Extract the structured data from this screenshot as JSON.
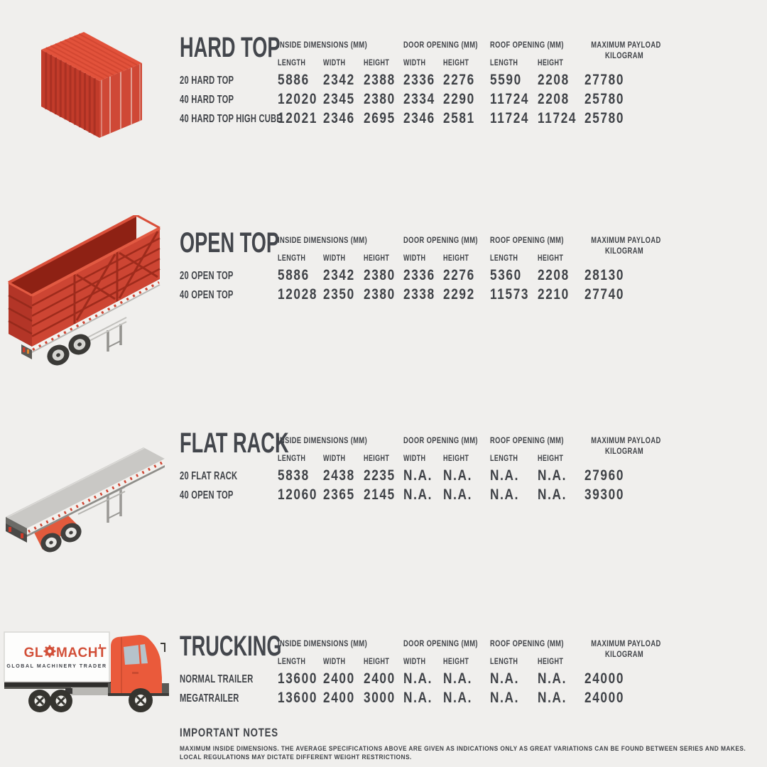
{
  "palette": {
    "background": "#f0efed",
    "text": "#3f4247",
    "container_red": "#cd4533",
    "container_red_dark": "#a93122",
    "container_red_top": "#e2523b",
    "flatbed_gray": "#c9c8c5",
    "logo_red": "#d24f38"
  },
  "columns": {
    "groups": [
      {
        "label": "INSIDE DIMENSIONS (MM)"
      },
      {
        "label": "DOOR OPENING (MM)"
      },
      {
        "label": "ROOF OPENING (MM)"
      },
      {
        "label": "MAXIMUM PAYLOAD",
        "label2": "KILOGRAM"
      }
    ],
    "subheaders": [
      "LENGTH",
      "WIDTH",
      "HEIGHT",
      "WIDTH",
      "HEIGHT",
      "LENGTH",
      "HEIGHT"
    ]
  },
  "sections": [
    {
      "title": "HARD TOP",
      "illustration": "red-hard-top-container",
      "rows": [
        {
          "label": "20 HARD TOP",
          "values": [
            "5886",
            "2342",
            "2388",
            "2336",
            "2276",
            "5590",
            "2208",
            "27780"
          ]
        },
        {
          "label": "40 HARD TOP",
          "values": [
            "12020",
            "2345",
            "2380",
            "2334",
            "2290",
            "11724",
            "2208",
            "25780"
          ]
        },
        {
          "label": "40 HARD TOP HIGH CUBE",
          "values": [
            "12021",
            "2346",
            "2695",
            "2346",
            "2581",
            "11724",
            "11724",
            "25780"
          ]
        }
      ]
    },
    {
      "title": "OPEN TOP",
      "illustration": "red-open-top-trailer",
      "rows": [
        {
          "label": "20 OPEN TOP",
          "values": [
            "5886",
            "2342",
            "2380",
            "2336",
            "2276",
            "5360",
            "2208",
            "28130"
          ]
        },
        {
          "label": "40 OPEN TOP",
          "values": [
            "12028",
            "2350",
            "2380",
            "2338",
            "2292",
            "11573",
            "2210",
            "27740"
          ]
        }
      ]
    },
    {
      "title": "FLAT RACK",
      "illustration": "gray-flat-rack-trailer",
      "rows": [
        {
          "label": "20 FLAT RACK",
          "values": [
            "5838",
            "2438",
            "2235",
            "N.A.",
            "N.A.",
            "N.A.",
            "N.A.",
            "27960"
          ]
        },
        {
          "label": "40 OPEN TOP",
          "values": [
            "12060",
            "2365",
            "2145",
            "N.A.",
            "N.A.",
            "N.A.",
            "N.A.",
            "39300"
          ]
        }
      ]
    },
    {
      "title": "TRUCKING",
      "illustration": "glomacht-box-truck",
      "rows": [
        {
          "label": "NORMAL TRAILER",
          "values": [
            "13600",
            "2400",
            "2400",
            "N.A.",
            "N.A.",
            "N.A.",
            "N.A.",
            "24000"
          ]
        },
        {
          "label": "MEGATRAILER",
          "values": [
            "13600",
            "2400",
            "3000",
            "N.A.",
            "N.A.",
            "N.A.",
            "N.A.",
            "24000"
          ]
        }
      ]
    }
  ],
  "truck_logo": {
    "brand_left": "GL",
    "brand_right": "MACHT",
    "gear_icon": "gear-as-letter-o",
    "tagline": "GLOBAL MACHINERY TRADER"
  },
  "notes": {
    "title": "IMPORTANT NOTES",
    "lines": [
      "MAXIMUM INSIDE DIMENSIONS. THE AVERAGE SPECIFICATIONS ABOVE ARE GIVEN AS INDICATIONS ONLY AS GREAT VARIATIONS CAN BE FOUND BETWEEN SERIES AND MAKES.",
      "LOCAL REGULATIONS MAY DICTATE DIFFERENT WEIGHT RESTRICTIONS."
    ]
  }
}
